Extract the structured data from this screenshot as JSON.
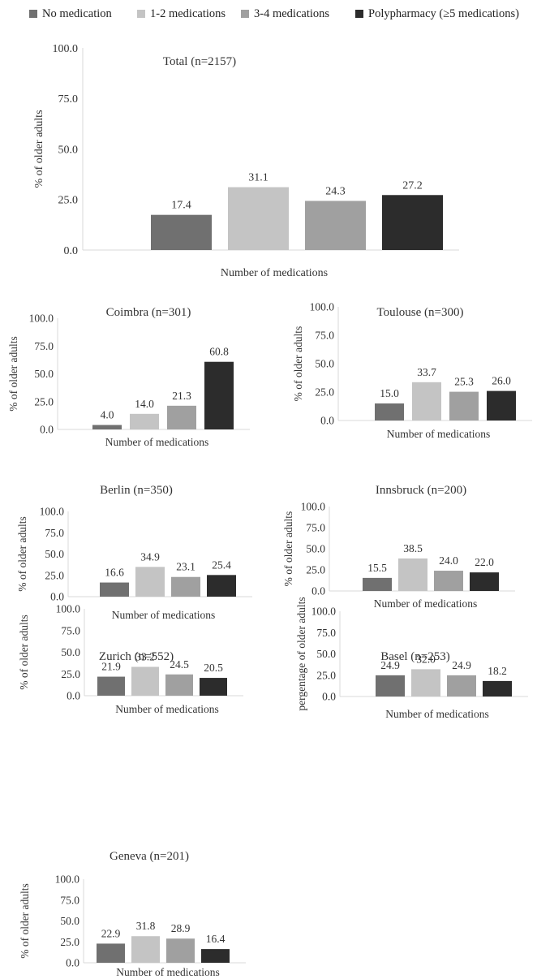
{
  "colors": {
    "series": [
      "#707070",
      "#c4c4c4",
      "#a0a0a0",
      "#2c2c2c"
    ],
    "axis": "#d9d9d9",
    "text": "#333333"
  },
  "legend": {
    "items": [
      "No medication",
      "1-2 medications",
      "3-4 medications",
      "Polypharmacy (≥5 medications)"
    ]
  },
  "chart_data": [
    {
      "type": "bar",
      "title": "Total (n=2157)",
      "categories": [
        "No medication",
        "1-2 medications",
        "3-4 medications",
        "Polypharmacy (≥5 medications)"
      ],
      "values": [
        17.4,
        31.1,
        24.3,
        27.2
      ],
      "xlabel": "Number of medications",
      "ylabel": "% of older adults",
      "ylim": [
        0,
        100
      ],
      "yticks": [
        "0.0",
        "25.0",
        "50.0",
        "75.0",
        "100.0"
      ],
      "value_labels": [
        "17.4",
        "31.1",
        "24.3",
        "27.2"
      ],
      "grid": false
    },
    {
      "type": "bar",
      "title": "Coimbra (n=301)",
      "categories": [
        "No medication",
        "1-2 medications",
        "3-4 medications",
        "Polypharmacy (≥5 medications)"
      ],
      "values": [
        4.0,
        14.0,
        21.3,
        60.8
      ],
      "xlabel": "Number of medications",
      "ylabel": "% of older adults",
      "ylim": [
        0,
        100
      ],
      "yticks": [
        "0.0",
        "25.0",
        "50.0",
        "75.0",
        "100.0"
      ],
      "value_labels": [
        "4.0",
        "14.0",
        "21.3",
        "60.8"
      ],
      "grid": false
    },
    {
      "type": "bar",
      "title": "Toulouse (n=300)",
      "categories": [
        "No medication",
        "1-2 medications",
        "3-4 medications",
        "Polypharmacy (≥5 medications)"
      ],
      "values": [
        15.0,
        33.7,
        25.3,
        26.0
      ],
      "xlabel": "Number of medications",
      "ylabel": "% of older adults",
      "ylim": [
        0,
        100
      ],
      "yticks": [
        "0.0",
        "25.0",
        "50.0",
        "75.0",
        "100.0"
      ],
      "value_labels": [
        "15.0",
        "33.7",
        "25.3",
        "26.0"
      ],
      "grid": false
    },
    {
      "type": "bar",
      "title": "Berlin (n=350)",
      "categories": [
        "No medication",
        "1-2 medications",
        "3-4 medications",
        "Polypharmacy (≥5 medications)"
      ],
      "values": [
        16.6,
        34.9,
        23.1,
        25.4
      ],
      "xlabel": "Number of medications",
      "ylabel": "% of older adults",
      "ylim": [
        0,
        100
      ],
      "yticks": [
        "0.0",
        "25.0",
        "50.0",
        "75.0",
        "100.0"
      ],
      "value_labels": [
        "16.6",
        "34.9",
        "23.1",
        "25.4"
      ],
      "grid": false
    },
    {
      "type": "bar",
      "title": "Innsbruck (n=200)",
      "categories": [
        "No medication",
        "1-2 medications",
        "3-4 medications",
        "Polypharmacy (≥5 medications)"
      ],
      "values": [
        15.5,
        38.5,
        24.0,
        22.0
      ],
      "xlabel": "Number of medications",
      "ylabel": "% of older adults",
      "ylim": [
        0,
        100
      ],
      "yticks": [
        "0.0",
        "25.0",
        "50.0",
        "75.0",
        "100.0"
      ],
      "value_labels": [
        "15.5",
        "38.5",
        "24.0",
        "22.0"
      ],
      "grid": false
    },
    {
      "type": "bar",
      "title": "Zurich (n=552)",
      "categories": [
        "No medication",
        "1-2 medications",
        "3-4 medications",
        "Polypharmacy (≥5 medications)"
      ],
      "values": [
        21.9,
        33.2,
        24.5,
        20.5
      ],
      "xlabel": "Number of medications",
      "ylabel": "% of older adults",
      "ylim": [
        0,
        100
      ],
      "yticks": [
        "0.0",
        "25.0",
        "50.0",
        "75.0",
        "100.0"
      ],
      "value_labels": [
        "21.9",
        "33.2",
        "24.5",
        "20.5"
      ],
      "grid": false
    },
    {
      "type": "bar",
      "title": "Basel (n=253)",
      "categories": [
        "No medication",
        "1-2 medications",
        "3-4 medications",
        "Polypharmacy (≥5 medications)"
      ],
      "values": [
        24.9,
        32.0,
        24.9,
        18.2
      ],
      "xlabel": "Number of medications",
      "ylabel": "pergentage of older adults",
      "ylim": [
        0,
        100
      ],
      "yticks": [
        "0.0",
        "25.0",
        "50.0",
        "75.0",
        "100.0"
      ],
      "value_labels": [
        "24.9",
        "32.0",
        "24.9",
        "18.2"
      ],
      "grid": false
    },
    {
      "type": "bar",
      "title": "Geneva (n=201)",
      "categories": [
        "No medication",
        "1-2 medications",
        "3-4 medications",
        "Polypharmacy (≥5 medications)"
      ],
      "values": [
        22.9,
        31.8,
        28.9,
        16.4
      ],
      "xlabel": "Number of medications",
      "ylabel": "% of older adults",
      "ylim": [
        0,
        100
      ],
      "yticks": [
        "0.0",
        "25.0",
        "50.0",
        "75.0",
        "100.0"
      ],
      "value_labels": [
        "22.9",
        "31.8",
        "28.9",
        "16.4"
      ],
      "grid": false
    }
  ]
}
